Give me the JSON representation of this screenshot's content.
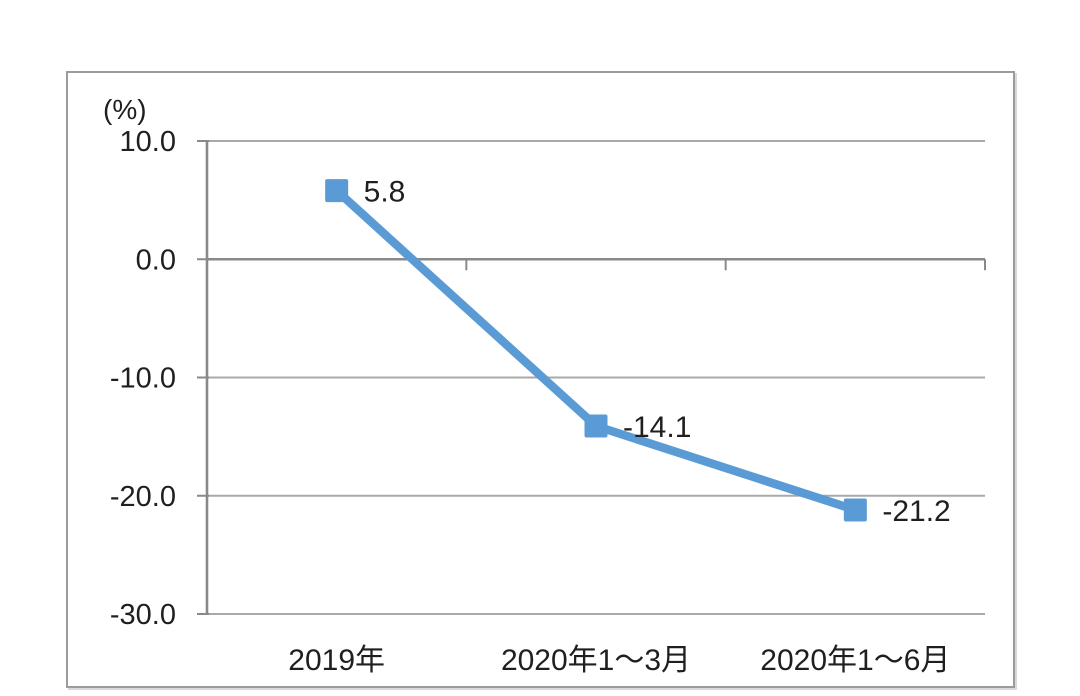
{
  "page": {
    "background_color": "#ffffff"
  },
  "chart_data": {
    "type": "line",
    "title": "",
    "unit_label": "(%)",
    "categories": [
      "2019年",
      "2020年1～3月",
      "2020年1～6月"
    ],
    "values": [
      5.8,
      -14.1,
      -21.2
    ],
    "data_labels": [
      "5.8",
      "-14.1",
      "-21.2"
    ],
    "y_ticks": [
      {
        "label": "10.0",
        "value": 10
      },
      {
        "label": "0.0",
        "value": 0
      },
      {
        "label": "-10.0",
        "value": -10
      },
      {
        "label": "-20.0",
        "value": -20
      },
      {
        "label": "-30.0",
        "value": -30
      }
    ],
    "ylim": [
      -30,
      10
    ],
    "grid": true,
    "legend": "none",
    "marker_shape": "square",
    "data_label_position": "right",
    "colors": {
      "series_line": "#5b9bd5",
      "marker": "#5b9bd5",
      "axis": "#898989",
      "gridline": "#a9a9a9",
      "label_text": "#1f1f1f",
      "frame_border": "#9b9b9b"
    }
  }
}
